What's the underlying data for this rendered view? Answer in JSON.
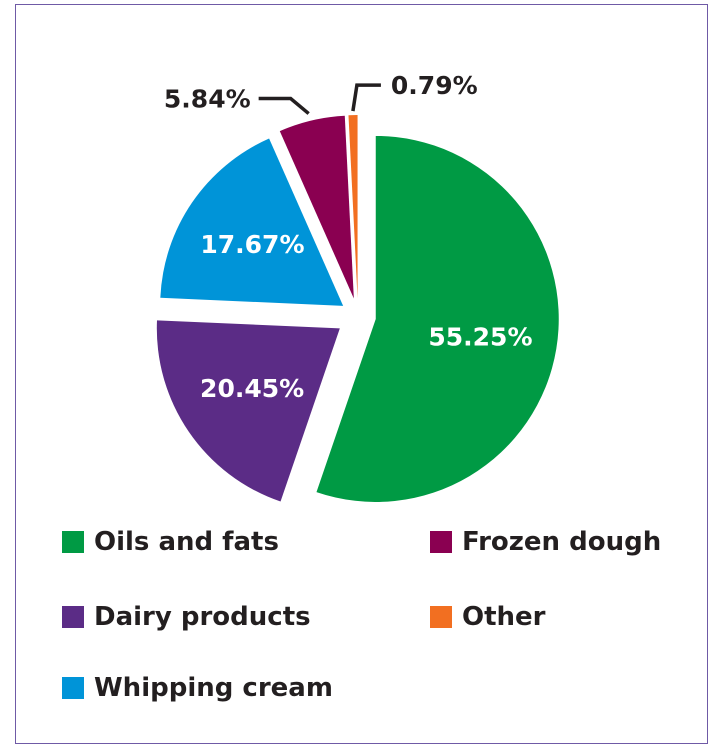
{
  "chart_data": {
    "type": "pie",
    "title": "",
    "slices": [
      {
        "name": "Oils and fats",
        "value": 55.25,
        "label": "55.25%",
        "color": "#009a44",
        "label_color": "#ffffff"
      },
      {
        "name": "Dairy products",
        "value": 20.45,
        "label": "20.45%",
        "color": "#5b2c86",
        "label_color": "#ffffff"
      },
      {
        "name": "Whipping cream",
        "value": 17.67,
        "label": "17.67%",
        "color": "#0094d8",
        "label_color": "#ffffff"
      },
      {
        "name": "Frozen dough",
        "value": 5.84,
        "label": "5.84%",
        "color": "#8a0051",
        "label_color": "#231f20"
      },
      {
        "name": "Other",
        "value": 0.79,
        "label": "0.79%",
        "color": "#f26f21",
        "label_color": "#231f20"
      }
    ],
    "legend": [
      {
        "label": "Oils and fats",
        "color": "#009a44"
      },
      {
        "label": "Frozen dough",
        "color": "#8a0051"
      },
      {
        "label": "Dairy products",
        "color": "#5b2c86"
      },
      {
        "label": "Other",
        "color": "#f26f21"
      },
      {
        "label": "Whipping cream",
        "color": "#0094d8"
      }
    ],
    "legend_placement": "bottom",
    "exploded": true
  },
  "colors": {
    "border": "#6f5aa6",
    "text": "#231f20"
  }
}
